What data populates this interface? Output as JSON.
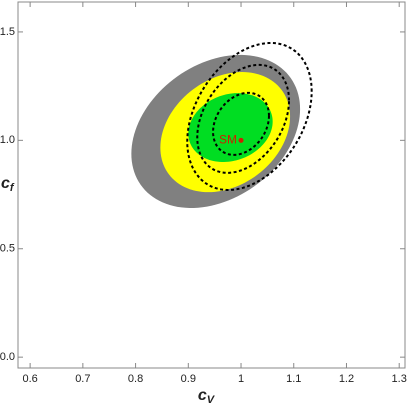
{
  "chart_data": {
    "type": "contour",
    "xlabel": "c",
    "xlabel_sub": "V",
    "ylabel": "c",
    "ylabel_sub": "f",
    "xlim": [
      0.577,
      1.311
    ],
    "ylim": [
      -0.05,
      1.638
    ],
    "xticks": [
      0.6,
      0.7,
      0.8,
      0.9,
      1.0,
      1.1,
      1.2,
      1.3
    ],
    "yticks": [
      {
        "value": 0,
        "label": "0.0"
      },
      0.5,
      {
        "value": 1,
        "label": "1.0"
      },
      1.5
    ],
    "regions": [
      {
        "fill": "#808080",
        "center": [
          0.952,
          1.041
        ],
        "radii": [
          0.16,
          0.353
        ],
        "phase": 17
      },
      {
        "fill": "#ffff00",
        "center": [
          0.97,
          1.038
        ],
        "radii": [
          0.123,
          0.277
        ],
        "phase": 15
      },
      {
        "fill": "#00dd22",
        "center": [
          0.98,
          1.059
        ],
        "radii": [
          0.08,
          0.159
        ],
        "phase": 10
      },
      {
        "stroke": "#000000",
        "center": [
          1.016,
          1.11
        ],
        "radii": [
          0.118,
          0.339
        ],
        "phase": 20
      },
      {
        "stroke": "#000000",
        "center": [
          1.004,
          1.099
        ],
        "radii": [
          0.087,
          0.249
        ],
        "phase": 20
      },
      {
        "stroke": "#000000",
        "center": [
          1.0,
          1.076
        ],
        "radii": [
          0.053,
          0.143
        ],
        "phase": 15
      }
    ],
    "point": {
      "label": "SM",
      "x": 1.0,
      "y": 1.0,
      "color": "#cc2200"
    }
  }
}
